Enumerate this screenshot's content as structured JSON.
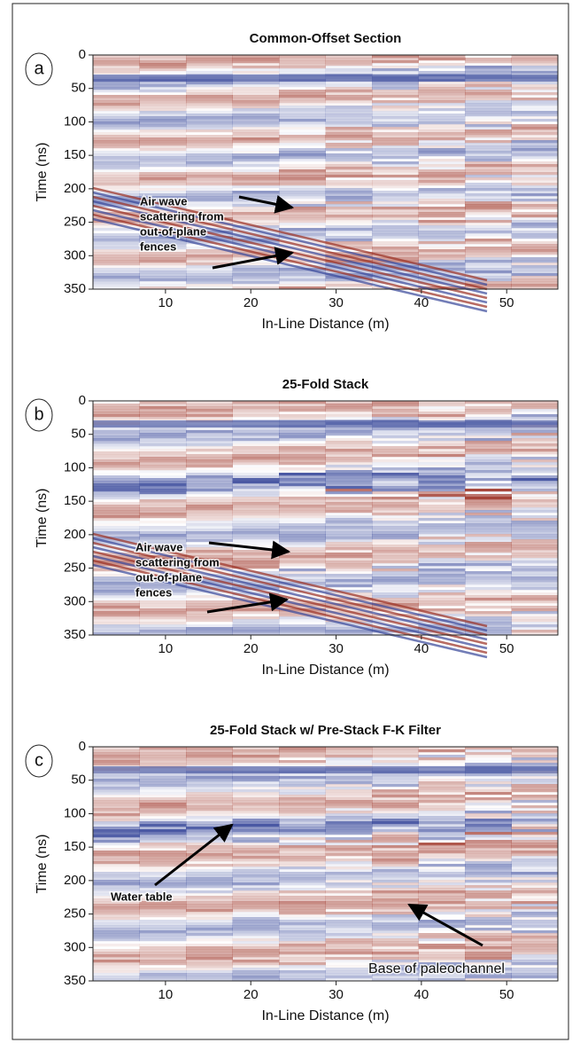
{
  "chart_data": [
    {
      "type": "image",
      "label": "a",
      "title": "Common-Offset Section",
      "x_label": "In-Line Distance (m)",
      "y_label": "Time (ns)",
      "xlim": [
        1.5,
        56
      ],
      "xticks": [
        10,
        20,
        30,
        40,
        50
      ],
      "ylim": [
        0,
        350
      ],
      "y_inverted": true,
      "yticks": [
        0,
        50,
        100,
        150,
        200,
        250,
        300,
        350
      ],
      "annotations": [
        [
          "Air wave",
          "scattering from",
          "out-of-plane",
          "fences"
        ]
      ]
    },
    {
      "type": "image",
      "label": "b",
      "title": "25-Fold Stack",
      "x_label": "In-Line Distance (m)",
      "y_label": "Time (ns)",
      "xlim": [
        1.5,
        56
      ],
      "xticks": [
        10,
        20,
        30,
        40,
        50
      ],
      "ylim": [
        0,
        350
      ],
      "y_inverted": true,
      "yticks": [
        0,
        50,
        100,
        150,
        200,
        250,
        300,
        350
      ],
      "annotations": [
        [
          "Air wave",
          "scattering from",
          "out-of-plane",
          "fences"
        ]
      ]
    },
    {
      "type": "image",
      "label": "c",
      "title": "25-Fold Stack w/ Pre-Stack F-K Filter",
      "x_label": "In-Line Distance (m)",
      "y_label": "Time (ns)",
      "xlim": [
        1.5,
        56
      ],
      "xticks": [
        10,
        20,
        30,
        40,
        50
      ],
      "ylim": [
        0,
        350
      ],
      "y_inverted": true,
      "yticks": [
        0,
        50,
        100,
        150,
        200,
        250,
        300,
        350
      ],
      "annotations": [
        [
          "Water table"
        ],
        [
          "Base of paleochannel"
        ]
      ]
    }
  ]
}
